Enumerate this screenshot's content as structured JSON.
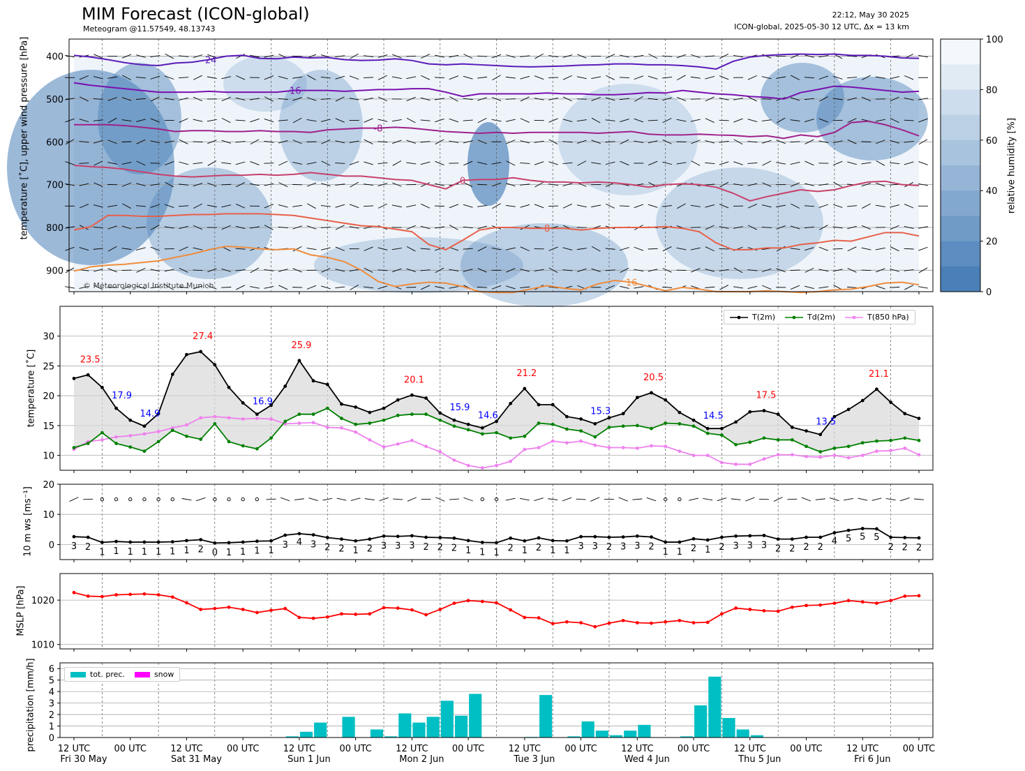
{
  "header": {
    "title": "MIM Forecast (ICON-global)",
    "subtitle": "Meteogram @11.57549, 48.13743",
    "timestamp": "22:12, May 30 2025",
    "model_run": "ICON-global, 2025-05-30 12 UTC, Δx = 13 km"
  },
  "copyright": "© Meteorological Institute Munich",
  "time_axis": {
    "tick_labels": [
      "12 UTC",
      "00 UTC",
      "12 UTC",
      "00 UTC",
      "12 UTC",
      "00 UTC",
      "12 UTC",
      "00 UTC",
      "12 UTC",
      "00 UTC",
      "12 UTC",
      "00 UTC",
      "12 UTC",
      "00 UTC",
      "12 UTC",
      "00 UTC"
    ],
    "day_labels": [
      "Fri 30 May",
      "Sat 31 May",
      "Sun 1 Jun",
      "Mon 2 Jun",
      "Tue 3 Jun",
      "Wed 4 Jun",
      "Thu 5 Jun",
      "Fri 6 Jun"
    ]
  },
  "chart_data": [
    {
      "type": "heatmap",
      "name": "upper-air",
      "ylabel": "temperature [˚C], upper wind pressure [hPa]",
      "yticks": [
        400,
        500,
        600,
        700,
        800,
        900
      ],
      "ylim": [
        950,
        360
      ],
      "colorbar_label": "relative humidity [%]",
      "colorbar_ticks": [
        0,
        20,
        40,
        60,
        80,
        100
      ],
      "isotherms": [
        {
          "label": "-24",
          "color": "#5a1ab8",
          "values": [
            398,
            402,
            408,
            415,
            420,
            422,
            416,
            414,
            408,
            400,
            398,
            405,
            406,
            402,
            404,
            403,
            408,
            410,
            409,
            406,
            410,
            418,
            420,
            418,
            420,
            422,
            424,
            425,
            424,
            423,
            421,
            420,
            418,
            418,
            420,
            420,
            422,
            425,
            430,
            412,
            402,
            398,
            396,
            395,
            396,
            395,
            398,
            398,
            400,
            404,
            405
          ]
        },
        {
          "label": "-16",
          "color": "#7a10b0",
          "values": [
            462,
            468,
            472,
            476,
            480,
            484,
            484,
            484,
            482,
            484,
            484,
            484,
            484,
            480,
            480,
            480,
            482,
            480,
            478,
            478,
            476,
            476,
            484,
            494,
            488,
            488,
            488,
            488,
            486,
            488,
            488,
            490,
            490,
            488,
            485,
            486,
            480,
            484,
            488,
            490,
            494,
            496,
            500,
            485,
            478,
            470,
            472,
            476,
            480,
            484,
            482
          ]
        },
        {
          "label": "-8",
          "color": "#a0208a",
          "values": [
            560,
            560,
            560,
            562,
            566,
            570,
            576,
            574,
            574,
            576,
            576,
            574,
            576,
            576,
            578,
            572,
            570,
            568,
            568,
            566,
            568,
            572,
            576,
            578,
            580,
            578,
            580,
            578,
            578,
            578,
            578,
            580,
            578,
            576,
            582,
            584,
            584,
            582,
            584,
            585,
            588,
            586,
            592,
            584,
            588,
            578,
            555,
            552,
            560,
            572,
            586
          ]
        },
        {
          "label": "0",
          "color": "#c8406a",
          "values": [
            655,
            658,
            660,
            664,
            670,
            676,
            680,
            682,
            680,
            678,
            678,
            676,
            678,
            676,
            672,
            676,
            680,
            680,
            684,
            688,
            690,
            700,
            710,
            690,
            688,
            688,
            684,
            690,
            694,
            694,
            696,
            694,
            696,
            700,
            706,
            700,
            698,
            700,
            706,
            720,
            738,
            728,
            720,
            712,
            716,
            712,
            702,
            694,
            692,
            700,
            702
          ]
        },
        {
          "label": "8",
          "color": "#e86048",
          "values": [
            806,
            798,
            772,
            772,
            774,
            774,
            772,
            770,
            770,
            768,
            768,
            768,
            770,
            772,
            778,
            784,
            790,
            796,
            798,
            804,
            810,
            840,
            852,
            830,
            806,
            800,
            800,
            802,
            802,
            802,
            806,
            802,
            800,
            800,
            800,
            798,
            802,
            810,
            836,
            852,
            852,
            848,
            848,
            840,
            836,
            830,
            832,
            822,
            812,
            812,
            820
          ]
        },
        {
          "label": "16",
          "color": "#f08c3c",
          "values": [
            902,
            892,
            888,
            886,
            882,
            878,
            870,
            862,
            852,
            844,
            846,
            850,
            852,
            850,
            864,
            870,
            880,
            900,
            926,
            938,
            932,
            928,
            930,
            938,
            950,
            952,
            952,
            944,
            936,
            942,
            946,
            932,
            924,
            928,
            938,
            948,
            940,
            944,
            950,
            950,
            950,
            948,
            950,
            952,
            950,
            946,
            944,
            938,
            930,
            928,
            934
          ]
        }
      ]
    },
    {
      "type": "line",
      "name": "temperature",
      "ylabel": "temperature [˚C]",
      "ylim": [
        7.5,
        35
      ],
      "yticks": [
        10,
        15,
        20,
        25,
        30
      ],
      "series": [
        {
          "name": "T(2m)",
          "color": "#000000",
          "values": [
            22.9,
            23.5,
            21.4,
            17.9,
            15.9,
            14.9,
            17.0,
            23.6,
            26.9,
            27.4,
            25.2,
            21.4,
            18.8,
            16.9,
            18.4,
            21.6,
            25.9,
            22.5,
            21.9,
            18.6,
            18.1,
            17.2,
            17.9,
            19.3,
            20.1,
            19.6,
            17.1,
            15.9,
            15.2,
            14.6,
            15.7,
            18.7,
            21.2,
            18.5,
            18.5,
            16.5,
            16.1,
            15.3,
            16.3,
            17.0,
            19.7,
            20.5,
            19.3,
            17.2,
            15.9,
            14.5,
            14.5,
            15.6,
            17.3,
            17.5,
            16.9,
            14.7,
            14.1,
            13.5,
            16.5,
            17.7,
            19.2,
            21.1,
            18.9,
            17.0,
            16.2
          ]
        },
        {
          "name": "Td(2m)",
          "color": "#008000",
          "values": [
            11.3,
            12.0,
            13.8,
            12.0,
            11.4,
            10.7,
            12.3,
            14.2,
            13.2,
            12.7,
            15.3,
            12.3,
            11.6,
            11.1,
            12.9,
            15.7,
            16.9,
            16.9,
            17.9,
            16.2,
            15.2,
            15.4,
            15.9,
            16.7,
            16.9,
            16.9,
            15.9,
            14.9,
            14.3,
            13.6,
            13.8,
            12.9,
            13.2,
            15.4,
            15.2,
            14.4,
            14.1,
            13.1,
            14.7,
            14.9,
            15.0,
            14.5,
            15.4,
            15.3,
            14.9,
            13.7,
            13.4,
            11.8,
            12.2,
            12.9,
            12.6,
            12.6,
            11.5,
            10.6,
            11.2,
            11.5,
            12.1,
            12.4,
            12.5,
            12.9,
            12.5
          ]
        },
        {
          "name": "T(850 hPa)",
          "color": "#ee82ee",
          "values": [
            11.0,
            12.3,
            12.6,
            13.1,
            13.3,
            13.6,
            14.0,
            14.6,
            15.1,
            16.3,
            16.5,
            16.3,
            16.1,
            16.2,
            16.1,
            15.3,
            15.4,
            15.5,
            14.7,
            14.6,
            13.9,
            12.6,
            11.4,
            11.9,
            12.5,
            11.5,
            10.6,
            9.2,
            8.3,
            7.9,
            8.3,
            9.0,
            11.0,
            11.3,
            12.4,
            12.1,
            12.4,
            11.7,
            11.3,
            11.3,
            11.2,
            11.6,
            11.5,
            10.7,
            10.0,
            10.0,
            8.8,
            8.5,
            8.5,
            9.4,
            10.1,
            10.1,
            9.8,
            9.7,
            10.0,
            9.6,
            10.0,
            10.7,
            10.8,
            11.2,
            10.1
          ]
        }
      ],
      "annotations": [
        {
          "text": "23.5",
          "color": "red"
        },
        {
          "text": "17.9",
          "color": "blue"
        },
        {
          "text": "14.9",
          "color": "blue"
        },
        {
          "text": "27.4",
          "color": "red"
        },
        {
          "text": "16.9",
          "color": "blue"
        },
        {
          "text": "25.9",
          "color": "red"
        },
        {
          "text": "20.1",
          "color": "red"
        },
        {
          "text": "15.9",
          "color": "blue"
        },
        {
          "text": "14.6",
          "color": "blue"
        },
        {
          "text": "21.2",
          "color": "red"
        },
        {
          "text": "15.3",
          "color": "blue"
        },
        {
          "text": "20.5",
          "color": "red"
        },
        {
          "text": "14.5",
          "color": "blue"
        },
        {
          "text": "17.5",
          "color": "red"
        },
        {
          "text": "13.5",
          "color": "blue"
        },
        {
          "text": "21.1",
          "color": "red"
        }
      ],
      "legend_position": "top-right"
    },
    {
      "type": "line",
      "name": "wind-speed",
      "ylabel": "10 m ws [ms⁻¹]",
      "ylim": [
        -5,
        20
      ],
      "yticks": [
        0,
        10,
        20
      ],
      "series": [
        {
          "name": "",
          "color": "#000000",
          "values": [
            2.6,
            2.4,
            0.7,
            1.0,
            0.8,
            0.8,
            0.8,
            0.9,
            1.3,
            1.6,
            0.5,
            0.6,
            0.8,
            1.1,
            1.2,
            3.1,
            3.6,
            3.2,
            2.3,
            1.8,
            1.2,
            1.8,
            2.8,
            2.7,
            2.9,
            2.4,
            2.3,
            2.1,
            1.3,
            0.7,
            0.6,
            2.1,
            1.2,
            2.2,
            1.3,
            1.2,
            2.6,
            2.6,
            2.4,
            2.5,
            2.8,
            2.5,
            0.8,
            0.8,
            1.9,
            1.5,
            2.4,
            2.8,
            2.9,
            3.0,
            1.8,
            1.8,
            2.4,
            2.4,
            3.9,
            4.7,
            5.3,
            5.2,
            2.4,
            2.3,
            2.2
          ]
        }
      ],
      "barbs_kn": [
        "3",
        "2",
        "1",
        "1",
        "1",
        "1",
        "1",
        "1",
        "1",
        "2",
        "0",
        "1",
        "1",
        "1",
        "1",
        "3",
        "4",
        "3",
        "2",
        "2",
        "1",
        "2",
        "3",
        "3",
        "3",
        "2",
        "2",
        "2",
        "1",
        "1",
        "1",
        "2",
        "1",
        "2",
        "1",
        "1",
        "3",
        "3",
        "2",
        "3",
        "3",
        "2",
        "1",
        "1",
        "2",
        "1",
        "2",
        "3",
        "3",
        "3",
        "2",
        "2",
        "2",
        "2",
        "4",
        "5",
        "5",
        "5",
        "2",
        "2",
        "2"
      ]
    },
    {
      "type": "line",
      "name": "mslp",
      "ylabel": "MSLP [hPa]",
      "ylim": [
        1009,
        1026
      ],
      "yticks": [
        1010,
        1020
      ],
      "series": [
        {
          "name": "",
          "color": "#ff0000",
          "values": [
            1021.7,
            1020.9,
            1020.8,
            1021.2,
            1021.3,
            1021.4,
            1021.2,
            1020.7,
            1019.4,
            1017.9,
            1018.1,
            1018.4,
            1017.9,
            1017.2,
            1017.7,
            1018.1,
            1016.1,
            1015.9,
            1016.2,
            1016.9,
            1016.8,
            1016.9,
            1018.3,
            1018.2,
            1017.8,
            1016.7,
            1017.9,
            1019.3,
            1019.9,
            1019.7,
            1019.4,
            1017.8,
            1016.1,
            1016.0,
            1014.7,
            1015.1,
            1014.9,
            1014.0,
            1014.8,
            1015.4,
            1014.9,
            1014.8,
            1015.1,
            1015.4,
            1014.9,
            1015.0,
            1016.9,
            1018.2,
            1017.9,
            1017.6,
            1017.5,
            1018.4,
            1018.8,
            1018.9,
            1019.3,
            1019.9,
            1019.6,
            1019.3,
            1019.9,
            1020.9,
            1021.0
          ]
        }
      ]
    },
    {
      "type": "bar",
      "name": "precipitation",
      "ylabel": "precipitation [mm/h]",
      "ylim": [
        0,
        6.5
      ],
      "yticks": [
        0,
        1,
        2,
        3,
        4,
        5,
        6
      ],
      "series": [
        {
          "name": "tot. prec.",
          "color": "#00bfc4",
          "values": [
            0,
            0,
            0,
            0,
            0,
            0,
            0,
            0,
            0,
            0,
            0,
            0,
            0,
            0,
            0,
            0.1,
            0.5,
            1.3,
            0,
            1.8,
            0,
            0.7,
            0.1,
            2.1,
            1.3,
            1.8,
            3.2,
            1.9,
            3.8,
            0,
            0,
            0,
            0.05,
            3.7,
            0,
            0.1,
            1.4,
            0.6,
            0.2,
            0.6,
            1.1,
            0,
            0,
            0.1,
            2.8,
            5.3,
            1.7,
            0.7,
            0.2,
            0,
            0,
            0,
            0,
            0,
            0,
            0,
            0,
            0,
            0,
            0,
            0
          ]
        },
        {
          "name": "snow",
          "color": "#ff00ff",
          "values": [
            0,
            0,
            0,
            0,
            0,
            0,
            0,
            0,
            0,
            0,
            0,
            0,
            0,
            0,
            0,
            0,
            0,
            0,
            0,
            0,
            0,
            0,
            0,
            0,
            0,
            0,
            0,
            0,
            0,
            0,
            0,
            0,
            0,
            0,
            0,
            0,
            0,
            0,
            0,
            0,
            0,
            0,
            0,
            0,
            0,
            0,
            0,
            0,
            0,
            0,
            0,
            0,
            0,
            0,
            0,
            0,
            0,
            0,
            0,
            0,
            0
          ]
        }
      ],
      "legend_position": "top-left"
    }
  ]
}
